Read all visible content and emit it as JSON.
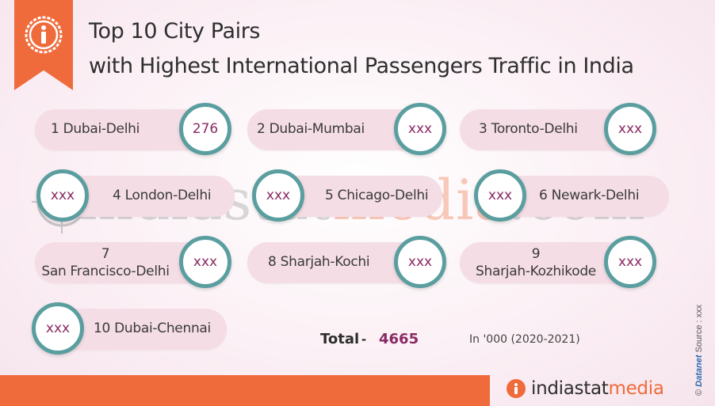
{
  "header": {
    "title_line1": "Top 10 City Pairs",
    "title_line2": "with Highest International Passengers Traffic in India"
  },
  "pairs": [
    {
      "rank": "1",
      "label": "1 Dubai-Delhi",
      "value": "276"
    },
    {
      "rank": "2",
      "label": "2 Dubai-Mumbai",
      "value": "xxx"
    },
    {
      "rank": "3",
      "label": "3  Toronto-Delhi",
      "value": "xxx"
    },
    {
      "rank": "4",
      "label": "4  London-Delhi",
      "value": "xxx"
    },
    {
      "rank": "5",
      "label": "5  Chicago-Delhi",
      "value": "xxx"
    },
    {
      "rank": "6",
      "label": "6  Newark-Delhi",
      "value": "xxx"
    },
    {
      "rank": "7",
      "rank_line": "7",
      "city_line": "San Francisco-Delhi",
      "value": "xxx"
    },
    {
      "rank": "8",
      "label": "8  Sharjah-Kochi",
      "value": "xxx"
    },
    {
      "rank": "9",
      "rank_line": "9",
      "city_line": "Sharjah-Kozhikode",
      "value": "xxx"
    },
    {
      "rank": "10",
      "label": "10  Dubai-Chennai",
      "value": "xxx"
    }
  ],
  "summary": {
    "total_label": "Total",
    "separator": "-",
    "total_value": "4665",
    "unit_note": "In '000 (2020-2021)"
  },
  "watermark": {
    "part1": "indiastat",
    "part2": "media",
    "part3": ".com"
  },
  "side_credit": {
    "copyright": "©",
    "brand": "Datanet",
    "source": "Source : xxx"
  },
  "footer": {
    "logo_part1": "indiastat",
    "logo_part2": "media"
  },
  "colors": {
    "accent_orange": "#ef6b3b",
    "teal_ring": "#5a9e9f",
    "value_purple": "#8a2a63",
    "pill_pink": "#f5dde6"
  },
  "icons": {
    "header": "info-icon",
    "footer": "info-icon",
    "watermark": "crosshair-icon"
  }
}
